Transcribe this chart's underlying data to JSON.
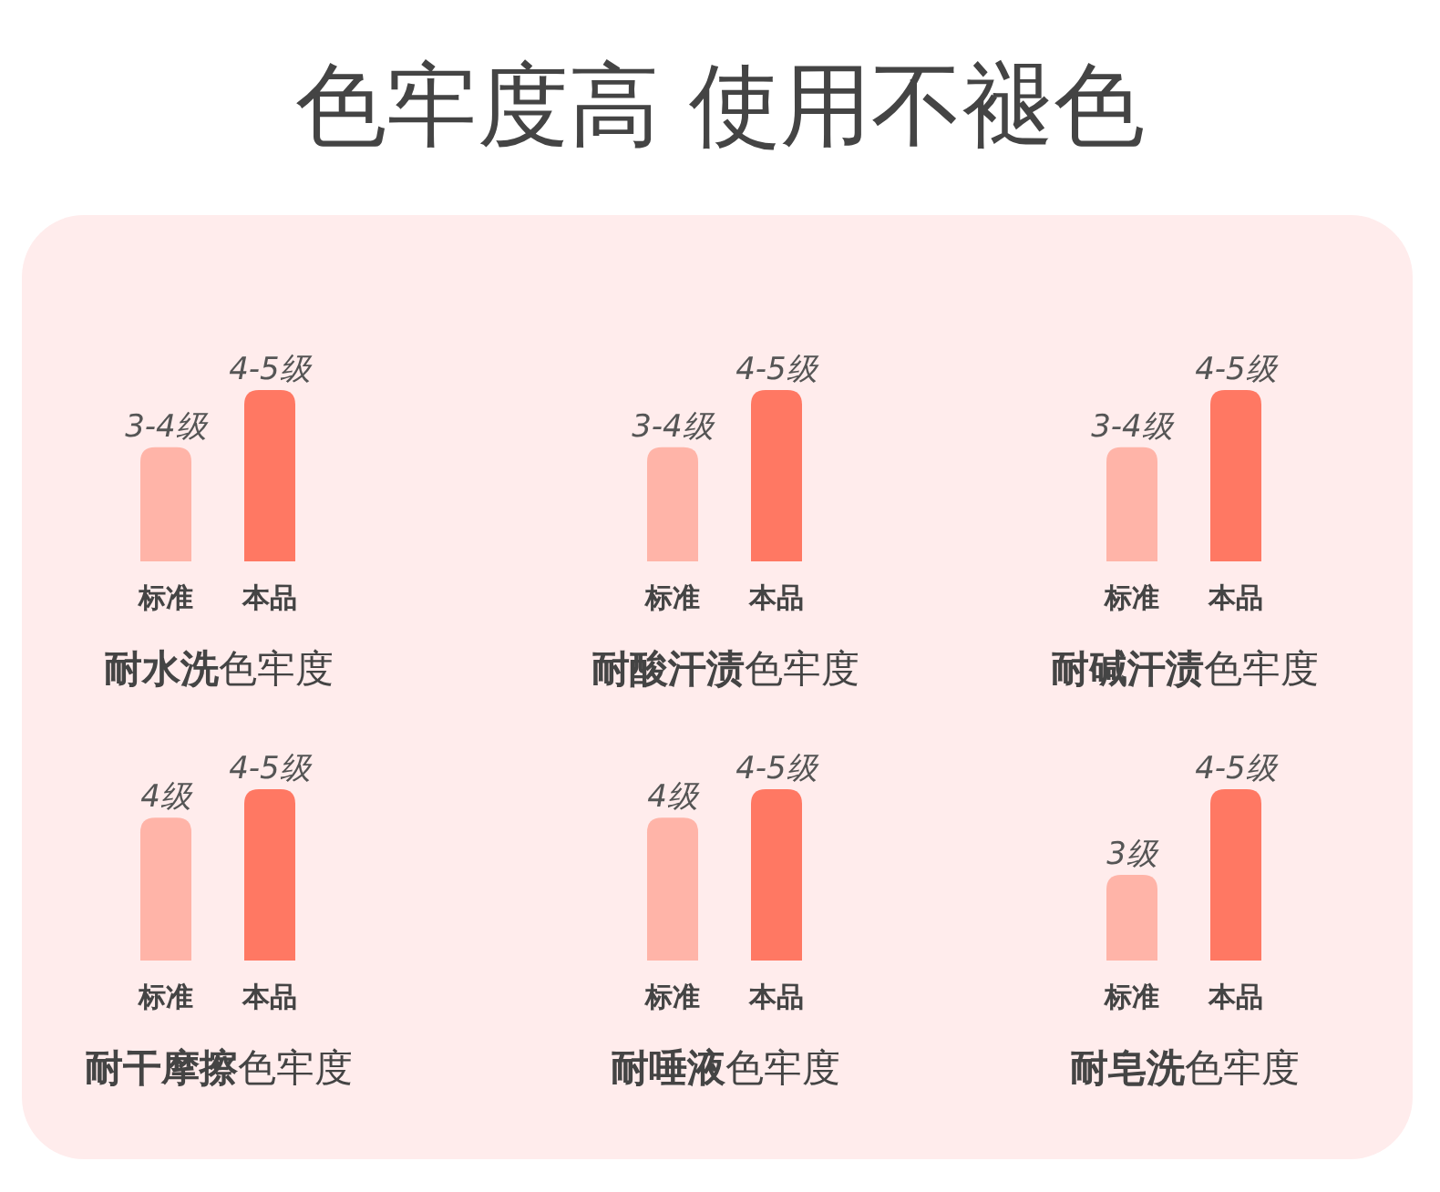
{
  "chart_data": [
    {
      "type": "other",
      "title": "色牢度高 使用不褪色"
    },
    {
      "type": "bar",
      "title": "耐水洗色牢度",
      "categories": [
        "标准",
        "本品"
      ],
      "values": [
        3.5,
        4.5
      ],
      "colors": [
        "#ffb4a8",
        "#ff7863"
      ],
      "value_labels": [
        "3-4级",
        "4-5级"
      ],
      "ylim": [
        1.5,
        4.5
      ]
    },
    {
      "type": "bar",
      "title": "耐酸汗渍色牢度",
      "categories": [
        "标准",
        "本品"
      ],
      "values": [
        3.5,
        4.5
      ],
      "colors": [
        "#ffb4a8",
        "#ff7863"
      ],
      "value_labels": [
        "3-4级",
        "4-5级"
      ],
      "ylim": [
        1.5,
        4.5
      ]
    },
    {
      "type": "bar",
      "title": "耐碱汗渍色牢度",
      "categories": [
        "标准",
        "本品"
      ],
      "values": [
        3.5,
        4.5
      ],
      "colors": [
        "#ffb4a8",
        "#ff7863"
      ],
      "value_labels": [
        "3-4级",
        "4-5级"
      ],
      "ylim": [
        1.5,
        4.5
      ]
    },
    {
      "type": "bar",
      "title": "耐干摩擦色牢度",
      "categories": [
        "标准",
        "本品"
      ],
      "values": [
        4,
        4.5
      ],
      "colors": [
        "#ffb4a8",
        "#ff7863"
      ],
      "value_labels": [
        "4级",
        "4-5级"
      ],
      "ylim": [
        1.5,
        4.5
      ]
    },
    {
      "type": "bar",
      "title": "耐唾液色牢度",
      "categories": [
        "标准",
        "本品"
      ],
      "values": [
        4,
        4.5
      ],
      "colors": [
        "#ffb4a8",
        "#ff7863"
      ],
      "value_labels": [
        "4级",
        "4-5级"
      ],
      "ylim": [
        1.5,
        4.5
      ]
    },
    {
      "type": "bar",
      "title": "耐皂洗色牢度",
      "categories": [
        "标准",
        "本品"
      ],
      "values": [
        3,
        4.5
      ],
      "colors": [
        "#ffb4a8",
        "#ff7863"
      ],
      "value_labels": [
        "3级",
        "4-5级"
      ],
      "ylim": [
        1.5,
        4.5
      ]
    }
  ]
}
